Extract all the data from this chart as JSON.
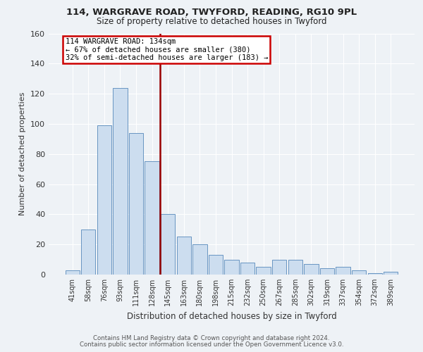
{
  "title1": "114, WARGRAVE ROAD, TWYFORD, READING, RG10 9PL",
  "title2": "Size of property relative to detached houses in Twyford",
  "xlabel": "Distribution of detached houses by size in Twyford",
  "ylabel": "Number of detached properties",
  "categories": [
    "41sqm",
    "58sqm",
    "76sqm",
    "93sqm",
    "111sqm",
    "128sqm",
    "145sqm",
    "163sqm",
    "180sqm",
    "198sqm",
    "215sqm",
    "232sqm",
    "250sqm",
    "267sqm",
    "285sqm",
    "302sqm",
    "319sqm",
    "337sqm",
    "354sqm",
    "372sqm",
    "389sqm"
  ],
  "values": [
    3,
    30,
    99,
    124,
    94,
    75,
    40,
    25,
    20,
    13,
    10,
    8,
    5,
    10,
    10,
    7,
    4,
    5,
    3,
    1,
    2
  ],
  "bar_color": "#ccddef",
  "bar_edge_color": "#5588bb",
  "red_line_index": 5.5,
  "annotation_line1": "114 WARGRAVE ROAD: 134sqm",
  "annotation_line2": "← 67% of detached houses are smaller (380)",
  "annotation_line3": "32% of semi-detached houses are larger (183) →",
  "annotation_box_color": "#ffffff",
  "annotation_box_edge": "#cc0000",
  "vline_color": "#990000",
  "footer1": "Contains HM Land Registry data © Crown copyright and database right 2024.",
  "footer2": "Contains public sector information licensed under the Open Government Licence v3.0.",
  "ylim": [
    0,
    160
  ],
  "yticks": [
    0,
    20,
    40,
    60,
    80,
    100,
    120,
    140,
    160
  ],
  "background_color": "#eef2f6",
  "grid_color": "#ffffff",
  "title1_fontsize": 9.5,
  "title2_fontsize": 8.5
}
